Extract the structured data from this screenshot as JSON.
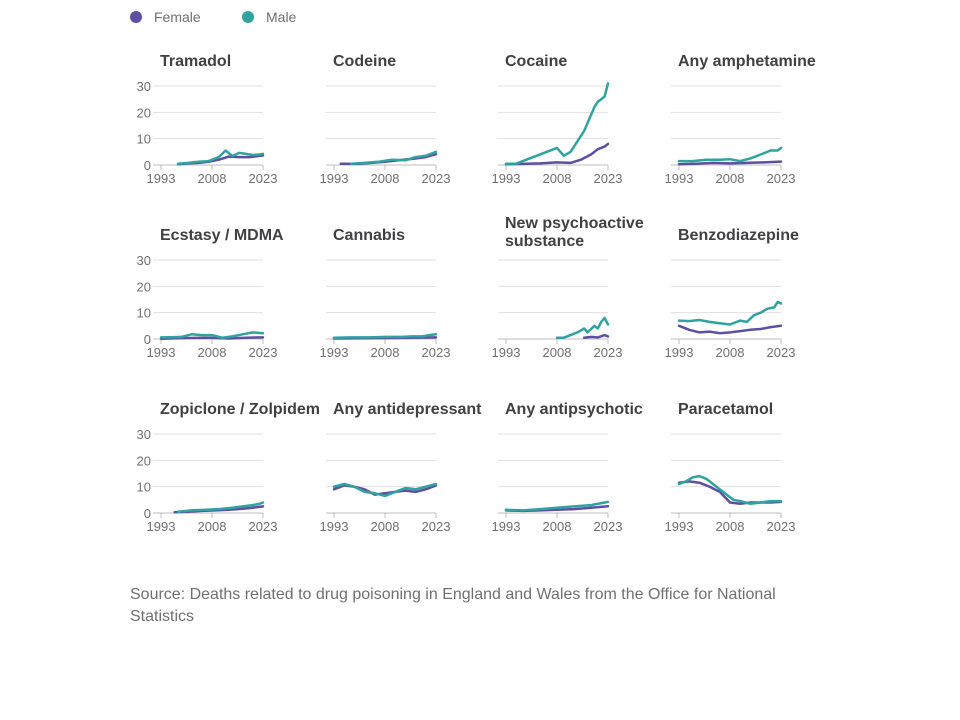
{
  "legend": [
    {
      "name": "Female",
      "color": "#5E4FA2"
    },
    {
      "name": "Male",
      "color": "#2FA3A0"
    }
  ],
  "source": "Source: Deaths related to drug poisoning in England and Wales from the Office for National Statistics",
  "chart_data": {
    "type": "line",
    "layout": "small-multiples",
    "x_ticks": [
      "1993",
      "2008",
      "2023"
    ],
    "xlim": [
      1993,
      2023
    ],
    "y_ticks": [
      "0",
      "10",
      "20",
      "30"
    ],
    "ylim": [
      0,
      30
    ],
    "grid": true,
    "legend_position": "top-left",
    "panels": [
      {
        "title": "Tramadol",
        "series": [
          {
            "name": "Female",
            "x": [
              1998,
              2001,
              2004,
              2007,
              2010,
              2013,
              2016,
              2019,
              2021,
              2023
            ],
            "y": [
              0.3,
              0.6,
              0.8,
              1.2,
              2.0,
              3.2,
              3.0,
              3.0,
              3.3,
              3.6
            ]
          },
          {
            "name": "Male",
            "x": [
              1998,
              2001,
              2004,
              2007,
              2010,
              2012,
              2014,
              2016,
              2018,
              2020,
              2022,
              2023
            ],
            "y": [
              0.5,
              0.8,
              1.2,
              1.5,
              3.0,
              5.5,
              3.4,
              4.6,
              4.2,
              3.8,
              4.0,
              4.2
            ]
          }
        ]
      },
      {
        "title": "Codeine",
        "series": [
          {
            "name": "Female",
            "x": [
              1995,
              2000,
              2004,
              2008,
              2012,
              2016,
              2020,
              2023
            ],
            "y": [
              0.5,
              0.4,
              0.8,
              1.2,
              1.8,
              2.3,
              3.0,
              4.1
            ]
          },
          {
            "name": "Male",
            "x": [
              1998,
              2002,
              2006,
              2010,
              2014,
              2017,
              2020,
              2022,
              2023
            ],
            "y": [
              0.5,
              0.8,
              1.2,
              2.0,
              1.8,
              3.0,
              3.5,
              4.5,
              5.0
            ]
          }
        ]
      },
      {
        "title": "Cocaine",
        "series": [
          {
            "name": "Female",
            "x": [
              1993,
              1998,
              2003,
              2008,
              2012,
              2015,
              2018,
              2020,
              2022,
              2023
            ],
            "y": [
              0.3,
              0.4,
              0.6,
              1.0,
              0.8,
              2.0,
              4.0,
              6.0,
              7.0,
              8.0
            ]
          },
          {
            "name": "Male",
            "x": [
              1993,
              1996,
              1999,
              2002,
              2005,
              2008,
              2010,
              2012,
              2014,
              2016,
              2018,
              2019,
              2020,
              2021,
              2022,
              2023
            ],
            "y": [
              0.5,
              0.5,
              2.0,
              3.5,
              5.0,
              6.5,
              3.5,
              5.0,
              9.0,
              13.0,
              19.0,
              22.0,
              24.0,
              25.0,
              26.0,
              31.0
            ]
          }
        ]
      },
      {
        "title": "Any amphetamine",
        "series": [
          {
            "name": "Female",
            "x": [
              1993,
              1998,
              2003,
              2008,
              2013,
              2018,
              2023
            ],
            "y": [
              0.3,
              0.5,
              0.8,
              0.6,
              0.8,
              1.0,
              1.3
            ]
          },
          {
            "name": "Male",
            "x": [
              1993,
              1997,
              2001,
              2005,
              2008,
              2011,
              2014,
              2017,
              2020,
              2022,
              2023
            ],
            "y": [
              1.5,
              1.5,
              2.0,
              2.0,
              2.2,
              1.5,
              2.5,
              4.0,
              5.5,
              5.5,
              6.5
            ]
          }
        ]
      },
      {
        "title": "Ecstasy / MDMA",
        "series": [
          {
            "name": "Female",
            "x": [
              1993,
              1998,
              2003,
              2008,
              2013,
              2018,
              2023
            ],
            "y": [
              0.1,
              0.3,
              0.4,
              0.4,
              0.2,
              0.5,
              0.6
            ]
          },
          {
            "name": "Male",
            "x": [
              1993,
              1996,
              1999,
              2002,
              2005,
              2008,
              2011,
              2014,
              2017,
              2020,
              2023
            ],
            "y": [
              0.6,
              0.7,
              0.8,
              1.8,
              1.5,
              1.5,
              0.5,
              1.0,
              1.8,
              2.5,
              2.2
            ]
          }
        ]
      },
      {
        "title": "Cannabis",
        "series": [
          {
            "name": "Female",
            "x": [
              1993,
              2003,
              2013,
              2023
            ],
            "y": [
              0.2,
              0.3,
              0.4,
              0.6
            ]
          },
          {
            "name": "Male",
            "x": [
              1993,
              1998,
              2003,
              2008,
              2013,
              2016,
              2019,
              2021,
              2023
            ],
            "y": [
              0.5,
              0.6,
              0.6,
              0.8,
              0.8,
              1.0,
              1.0,
              1.5,
              1.8
            ]
          }
        ]
      },
      {
        "title": "New psychoactive substance",
        "series": [
          {
            "name": "Female",
            "x": [
              2016,
              2018,
              2020,
              2022,
              2023
            ],
            "y": [
              0.5,
              0.8,
              0.6,
              1.5,
              1.0
            ]
          },
          {
            "name": "Male",
            "x": [
              2008,
              2010,
              2012,
              2014,
              2016,
              2017,
              2019,
              2020,
              2021,
              2022,
              2023
            ],
            "y": [
              0.5,
              0.5,
              1.5,
              2.5,
              4.0,
              2.5,
              5.0,
              4.0,
              6.5,
              8.0,
              5.5
            ]
          }
        ]
      },
      {
        "title": "Benzodiazepine",
        "series": [
          {
            "name": "Female",
            "x": [
              1993,
              1996,
              1999,
              2002,
              2005,
              2008,
              2011,
              2014,
              2017,
              2020,
              2023
            ],
            "y": [
              5.0,
              3.5,
              2.5,
              2.8,
              2.2,
              2.5,
              3.0,
              3.5,
              3.8,
              4.5,
              5.0
            ]
          },
          {
            "name": "Male",
            "x": [
              1993,
              1996,
              1999,
              2002,
              2005,
              2008,
              2011,
              2013,
              2015,
              2017,
              2019,
              2021,
              2022,
              2023
            ],
            "y": [
              7.0,
              6.8,
              7.2,
              6.5,
              6.0,
              5.5,
              7.0,
              6.5,
              9.0,
              10.0,
              11.5,
              12.0,
              14.0,
              13.5
            ]
          }
        ]
      },
      {
        "title": "Zopiclone / Zolpidem",
        "series": [
          {
            "name": "Female",
            "x": [
              1997,
              2001,
              2005,
              2009,
              2013,
              2017,
              2020,
              2023
            ],
            "y": [
              0.3,
              0.5,
              0.8,
              1.0,
              1.2,
              1.6,
              2.0,
              2.5
            ]
          },
          {
            "name": "Male",
            "x": [
              1998,
              2002,
              2006,
              2010,
              2014,
              2017,
              2020,
              2022,
              2023
            ],
            "y": [
              0.5,
              1.0,
              1.2,
              1.5,
              2.0,
              2.5,
              3.0,
              3.5,
              4.0
            ]
          }
        ]
      },
      {
        "title": "Any antidepressant",
        "series": [
          {
            "name": "Female",
            "x": [
              1993,
              1996,
              1999,
              2002,
              2005,
              2008,
              2011,
              2014,
              2017,
              2020,
              2023
            ],
            "y": [
              9.0,
              10.5,
              10.0,
              9.0,
              7.0,
              7.5,
              8.0,
              8.5,
              8.0,
              9.0,
              10.5
            ]
          },
          {
            "name": "Male",
            "x": [
              1993,
              1996,
              1999,
              2002,
              2005,
              2008,
              2011,
              2014,
              2017,
              2020,
              2023
            ],
            "y": [
              10.0,
              11.0,
              10.0,
              8.0,
              7.5,
              6.5,
              8.0,
              9.5,
              9.0,
              10.0,
              11.0
            ]
          }
        ]
      },
      {
        "title": "Any antipsychotic",
        "series": [
          {
            "name": "Female",
            "x": [
              1993,
              1998,
              2003,
              2008,
              2013,
              2018,
              2023
            ],
            "y": [
              1.0,
              0.8,
              1.0,
              1.2,
              1.5,
              2.0,
              2.6
            ]
          },
          {
            "name": "Male",
            "x": [
              1993,
              1998,
              2003,
              2008,
              2013,
              2018,
              2023
            ],
            "y": [
              1.2,
              1.0,
              1.5,
              2.0,
              2.5,
              3.0,
              4.2
            ]
          }
        ]
      },
      {
        "title": "Paracetamol",
        "series": [
          {
            "name": "Female",
            "x": [
              1993,
              1996,
              1999,
              2002,
              2005,
              2008,
              2011,
              2014,
              2017,
              2020,
              2023
            ],
            "y": [
              11.5,
              12.0,
              11.5,
              10.0,
              8.0,
              4.0,
              3.5,
              4.0,
              4.0,
              4.0,
              4.2
            ]
          },
          {
            "name": "Male",
            "x": [
              1993,
              1995,
              1997,
              1999,
              2001,
              2003,
              2005,
              2007,
              2009,
              2011,
              2014,
              2017,
              2020,
              2023
            ],
            "y": [
              11.0,
              12.0,
              13.5,
              14.0,
              13.0,
              11.0,
              9.0,
              7.0,
              5.0,
              4.5,
              3.5,
              4.0,
              4.5,
              4.5
            ]
          }
        ]
      }
    ]
  }
}
